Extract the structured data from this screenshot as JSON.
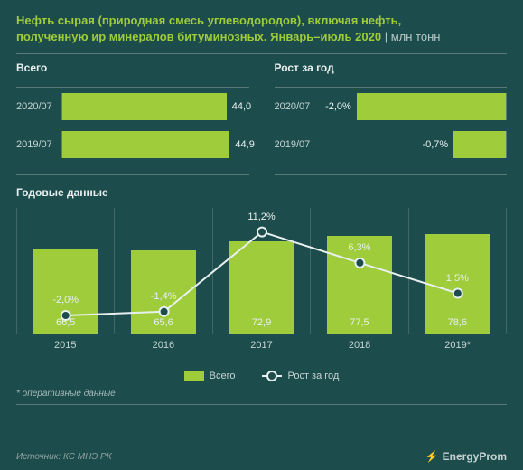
{
  "colors": {
    "background": "#1d4c4c",
    "accent": "#9ecc3a",
    "text_light": "#e8f0ef",
    "text_muted": "#c5d4d3",
    "grid": "#5a7a7a",
    "line": "#e8f0ef"
  },
  "title": {
    "line1": "Нефть сырая (природная смесь углеводородов), включая нефть,",
    "line2": "полученную ир минералов битуминозных. Январь–июль 2020",
    "unit": "млн тонн"
  },
  "top_charts": {
    "left": {
      "title": "Всего",
      "max": 50,
      "rows": [
        {
          "label": "2020/07",
          "value": 44.0,
          "value_label": "44,0"
        },
        {
          "label": "2019/07",
          "value": 44.9,
          "value_label": "44,9"
        }
      ]
    },
    "right": {
      "title": "Рост за год",
      "min": -2.5,
      "rows": [
        {
          "label": "2020/07",
          "value": -2.0,
          "value_label": "-2,0%"
        },
        {
          "label": "2019/07",
          "value": -0.7,
          "value_label": "-0,7%"
        }
      ]
    }
  },
  "yearly": {
    "title": "Годовые данные",
    "bar_max": 100,
    "line_min": -5,
    "line_max": 15,
    "categories": [
      "2015",
      "2016",
      "2017",
      "2018",
      "2019*"
    ],
    "bars": [
      {
        "value": 66.5,
        "label": "66,5"
      },
      {
        "value": 65.6,
        "label": "65,6"
      },
      {
        "value": 72.9,
        "label": "72,9"
      },
      {
        "value": 77.5,
        "label": "77,5"
      },
      {
        "value": 78.6,
        "label": "78,6"
      }
    ],
    "line": [
      {
        "value": -2.0,
        "label": "-2,0%"
      },
      {
        "value": -1.4,
        "label": "-1,4%"
      },
      {
        "value": 11.2,
        "label": "11,2%"
      },
      {
        "value": 6.3,
        "label": "6,3%"
      },
      {
        "value": 1.5,
        "label": "1,5%"
      }
    ]
  },
  "legend": {
    "bar": "Всего",
    "line": "Рост за год"
  },
  "footnote": "* оперативные данные",
  "footer": {
    "source": "Источник: КС МНЭ РК",
    "brand": "EnergyProm"
  }
}
